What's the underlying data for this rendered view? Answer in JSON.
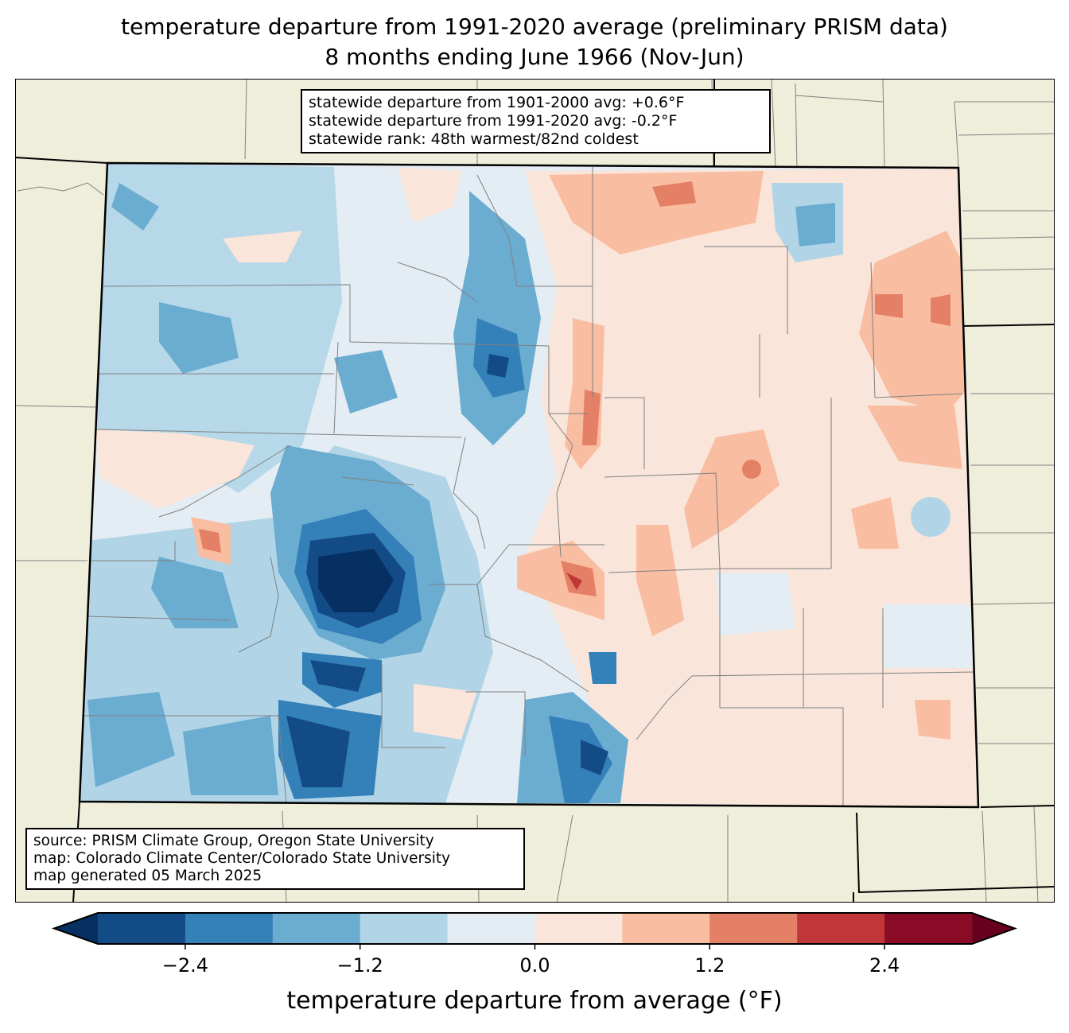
{
  "title": {
    "line1": "temperature departure from 1991-2020 average (preliminary PRISM data)",
    "line2": "8 months ending June 1966 (Nov-Jun)"
  },
  "stats_box": [
    "statewide departure from 1901-2000 avg: +0.6°F",
    "statewide departure from 1991-2020 avg: -0.2°F",
    "statewide rank: 48th warmest/82nd coldest"
  ],
  "source_box": [
    "source: PRISM Climate Group, Oregon State University",
    "map: Colorado Climate Center/Colorado State University",
    "map generated 05 March 2025"
  ],
  "colorbar": {
    "label": "temperature departure from average (°F)",
    "ticks": [
      "−2.4",
      "−1.2",
      "0.0",
      "1.2",
      "2.4"
    ],
    "bounds": [
      -3.0,
      -2.4,
      -1.8,
      -1.2,
      -0.6,
      0.0,
      0.6,
      1.2,
      1.8,
      2.4,
      3.0
    ],
    "under_color": "#053061",
    "over_color": "#67001f",
    "colors": [
      "#134b87",
      "#3480b9",
      "#6bacd1",
      "#b1d5e7",
      "#e3edf3",
      "#f9e5da",
      "#f9bda1",
      "#e48065",
      "#c13639",
      "#8a0b25"
    ]
  },
  "map_colors": {
    "background": "#efeedb",
    "state_border": "#000000",
    "county_border": "#808080"
  }
}
